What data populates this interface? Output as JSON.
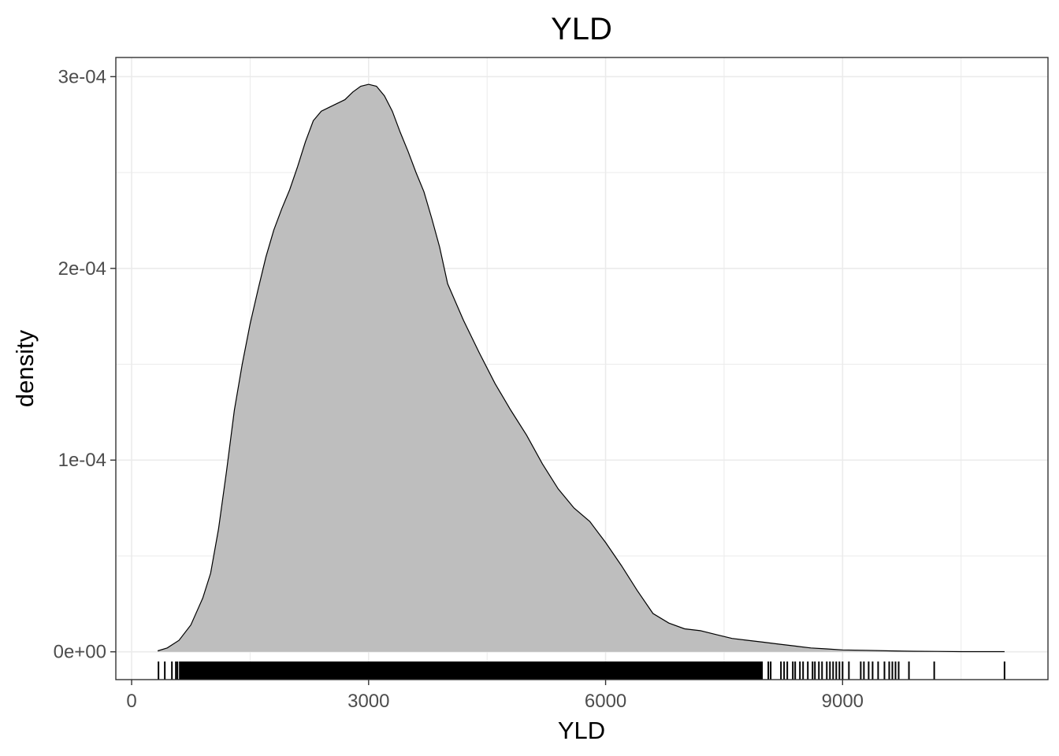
{
  "chart_data": {
    "type": "area",
    "title": "YLD",
    "xlabel": "YLD",
    "ylabel": "density",
    "xlim": [
      -200,
      11600
    ],
    "ylim": [
      -1.45e-05,
      0.00031
    ],
    "x_ticks": [
      0,
      3000,
      6000,
      9000
    ],
    "x_tick_labels": [
      "0",
      "3000",
      "6000",
      "9000"
    ],
    "y_ticks": [
      0,
      0.0001,
      0.0002,
      0.0003
    ],
    "y_tick_labels": [
      "0e+00",
      "1e-04",
      "2e-04",
      "3e-04"
    ],
    "grid": true,
    "colors": {
      "fill": "#bebebe",
      "stroke": "#000000",
      "grid": "#ebebeb",
      "panel_border": "#333333"
    },
    "series": [
      {
        "x": [
          330,
          450,
          600,
          750,
          900,
          1000,
          1100,
          1200,
          1300,
          1400,
          1500,
          1600,
          1700,
          1800,
          1900,
          2000,
          2100,
          2200,
          2300,
          2400,
          2500,
          2600,
          2700,
          2800,
          2900,
          3000,
          3100,
          3200,
          3300,
          3400,
          3500,
          3600,
          3700,
          3800,
          3900,
          4000,
          4200,
          4400,
          4600,
          4800,
          5000,
          5200,
          5400,
          5600,
          5800,
          6000,
          6200,
          6400,
          6600,
          6800,
          7000,
          7200,
          7400,
          7600,
          7800,
          8000,
          8200,
          8400,
          8600,
          8800,
          9000,
          9300,
          9600,
          9900,
          10200,
          10500,
          10800,
          11050
        ],
        "y": [
          5e-07,
          2e-06,
          6e-06,
          1.4e-05,
          2.8e-05,
          4.1e-05,
          6.4e-05,
          9.4e-05,
          0.000126,
          0.00015,
          0.000171,
          0.000189,
          0.000206,
          0.00022,
          0.000231,
          0.000241,
          0.000253,
          0.000266,
          0.000277,
          0.000282,
          0.000284,
          0.000286,
          0.000288,
          0.000292,
          0.000295,
          0.000296,
          0.000295,
          0.00029,
          0.000282,
          0.000271,
          0.000261,
          0.00025,
          0.00024,
          0.000226,
          0.000211,
          0.000192,
          0.000173,
          0.000156,
          0.00014,
          0.000126,
          0.000113,
          9.8e-05,
          8.5e-05,
          7.5e-05,
          6.8e-05,
          5.7e-05,
          4.5e-05,
          3.2e-05,
          2e-05,
          1.5e-05,
          1.2e-05,
          1.1e-05,
          9e-06,
          7e-06,
          6e-06,
          5e-06,
          4e-06,
          3e-06,
          2e-06,
          1.5e-06,
          1e-06,
          8e-07,
          5e-07,
          3e-07,
          2e-07,
          1e-07,
          1e-07,
          1e-07
        ]
      }
    ],
    "rug": {
      "dense_ranges": [
        [
          330,
          350
        ],
        [
          500,
          520
        ],
        [
          600,
          7990
        ]
      ],
      "ticks": [
        420,
        560,
        580,
        8060,
        8090,
        8220,
        8260,
        8300,
        8370,
        8400,
        8460,
        8500,
        8560,
        8620,
        8650,
        8700,
        8740,
        8800,
        8840,
        8880,
        8920,
        8960,
        9000,
        9080,
        9230,
        9270,
        9330,
        9380,
        9450,
        9530,
        9590,
        9630,
        9670,
        9710,
        9840,
        10160,
        11050
      ]
    }
  }
}
